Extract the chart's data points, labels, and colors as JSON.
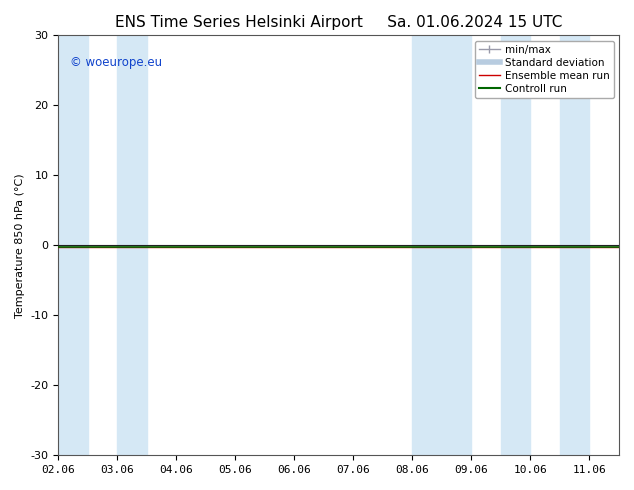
{
  "title_left": "ENS Time Series Helsinki Airport",
  "title_right": "Sa. 01.06.2024 15 UTC",
  "ylabel": "Temperature 850 hPa (°C)",
  "ylim": [
    -30,
    30
  ],
  "yticks": [
    -30,
    -20,
    -10,
    0,
    10,
    20,
    30
  ],
  "xlim": [
    0,
    9
  ],
  "xtick_labels": [
    "02.06",
    "03.06",
    "04.06",
    "05.06",
    "06.06",
    "07.06",
    "08.06",
    "09.06",
    "10.06",
    "11.06"
  ],
  "xtick_positions": [
    0,
    1,
    2,
    3,
    4,
    5,
    6,
    7,
    8,
    9
  ],
  "watermark": "© woeurope.eu",
  "watermark_color": "#1144cc",
  "bg_color": "#ffffff",
  "plot_bg_color": "#ffffff",
  "shaded_col_spans": [
    [
      0.0,
      0.5
    ],
    [
      1.0,
      1.5
    ],
    [
      6.0,
      7.0
    ],
    [
      7.5,
      8.0
    ],
    [
      8.5,
      9.0
    ]
  ],
  "shaded_color": "#d5e8f5",
  "control_run_y": -0.3,
  "ensemble_mean_y": -0.3,
  "legend_items": [
    {
      "label": "min/max",
      "color": "#a0aabb",
      "lw": 1.0
    },
    {
      "label": "Standard deviation",
      "color": "#b8cce0",
      "lw": 3
    },
    {
      "label": "Ensemble mean run",
      "color": "#cc0000",
      "lw": 1.0
    },
    {
      "label": "Controll run",
      "color": "#006600",
      "lw": 1.5
    }
  ],
  "title_fontsize": 11,
  "axis_label_fontsize": 8,
  "tick_fontsize": 8,
  "legend_fontsize": 7.5
}
